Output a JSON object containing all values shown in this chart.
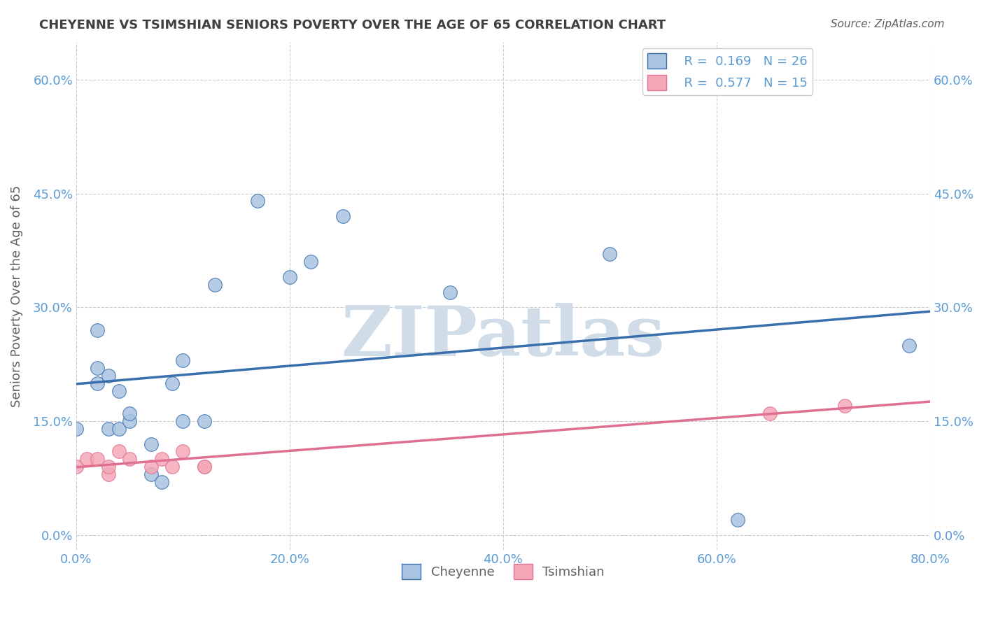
{
  "title": "CHEYENNE VS TSIMSHIAN SENIORS POVERTY OVER THE AGE OF 65 CORRELATION CHART",
  "source": "Source: ZipAtlas.com",
  "ylabel": "Seniors Poverty Over the Age of 65",
  "watermark": "ZIPatlas",
  "cheyenne_x": [
    0.0,
    0.02,
    0.02,
    0.02,
    0.03,
    0.03,
    0.04,
    0.04,
    0.05,
    0.05,
    0.07,
    0.07,
    0.08,
    0.09,
    0.1,
    0.1,
    0.12,
    0.13,
    0.17,
    0.2,
    0.22,
    0.25,
    0.35,
    0.5,
    0.62,
    0.78
  ],
  "cheyenne_y": [
    0.14,
    0.2,
    0.22,
    0.27,
    0.14,
    0.21,
    0.14,
    0.19,
    0.15,
    0.16,
    0.12,
    0.08,
    0.07,
    0.2,
    0.15,
    0.23,
    0.15,
    0.33,
    0.44,
    0.34,
    0.36,
    0.42,
    0.32,
    0.37,
    0.02,
    0.25
  ],
  "tsimshian_x": [
    0.0,
    0.01,
    0.02,
    0.03,
    0.03,
    0.04,
    0.05,
    0.07,
    0.08,
    0.09,
    0.1,
    0.12,
    0.12,
    0.65,
    0.72
  ],
  "tsimshian_y": [
    0.09,
    0.1,
    0.1,
    0.08,
    0.09,
    0.11,
    0.1,
    0.09,
    0.1,
    0.09,
    0.11,
    0.09,
    0.09,
    0.16,
    0.17
  ],
  "cheyenne_R": 0.169,
  "cheyenne_N": 26,
  "tsimshian_R": 0.577,
  "tsimshian_N": 15,
  "cheyenne_color": "#a8c4e0",
  "tsimshian_color": "#f4a8b8",
  "cheyenne_line_color": "#3a6fad",
  "tsimshian_line_color": "#e07090",
  "xlim": [
    0.0,
    0.8
  ],
  "ylim": [
    -0.02,
    0.65
  ],
  "xticks": [
    0.0,
    0.2,
    0.4,
    0.6,
    0.8
  ],
  "yticks": [
    0.0,
    0.15,
    0.3,
    0.45,
    0.6
  ],
  "xtick_labels": [
    "0.0%",
    "20.0%",
    "40.0%",
    "60.0%",
    "80.0%"
  ],
  "ytick_labels": [
    "0.0%",
    "15.0%",
    "30.0%",
    "45.0%",
    "60.0%"
  ],
  "background_color": "#ffffff",
  "grid_color": "#cccccc",
  "title_color": "#404040",
  "tick_label_color": "#5b9bd5",
  "legend_R_color": "#5b9bd5",
  "legend_N_color": "#5b9bd5",
  "watermark_color": "#d0dce8"
}
